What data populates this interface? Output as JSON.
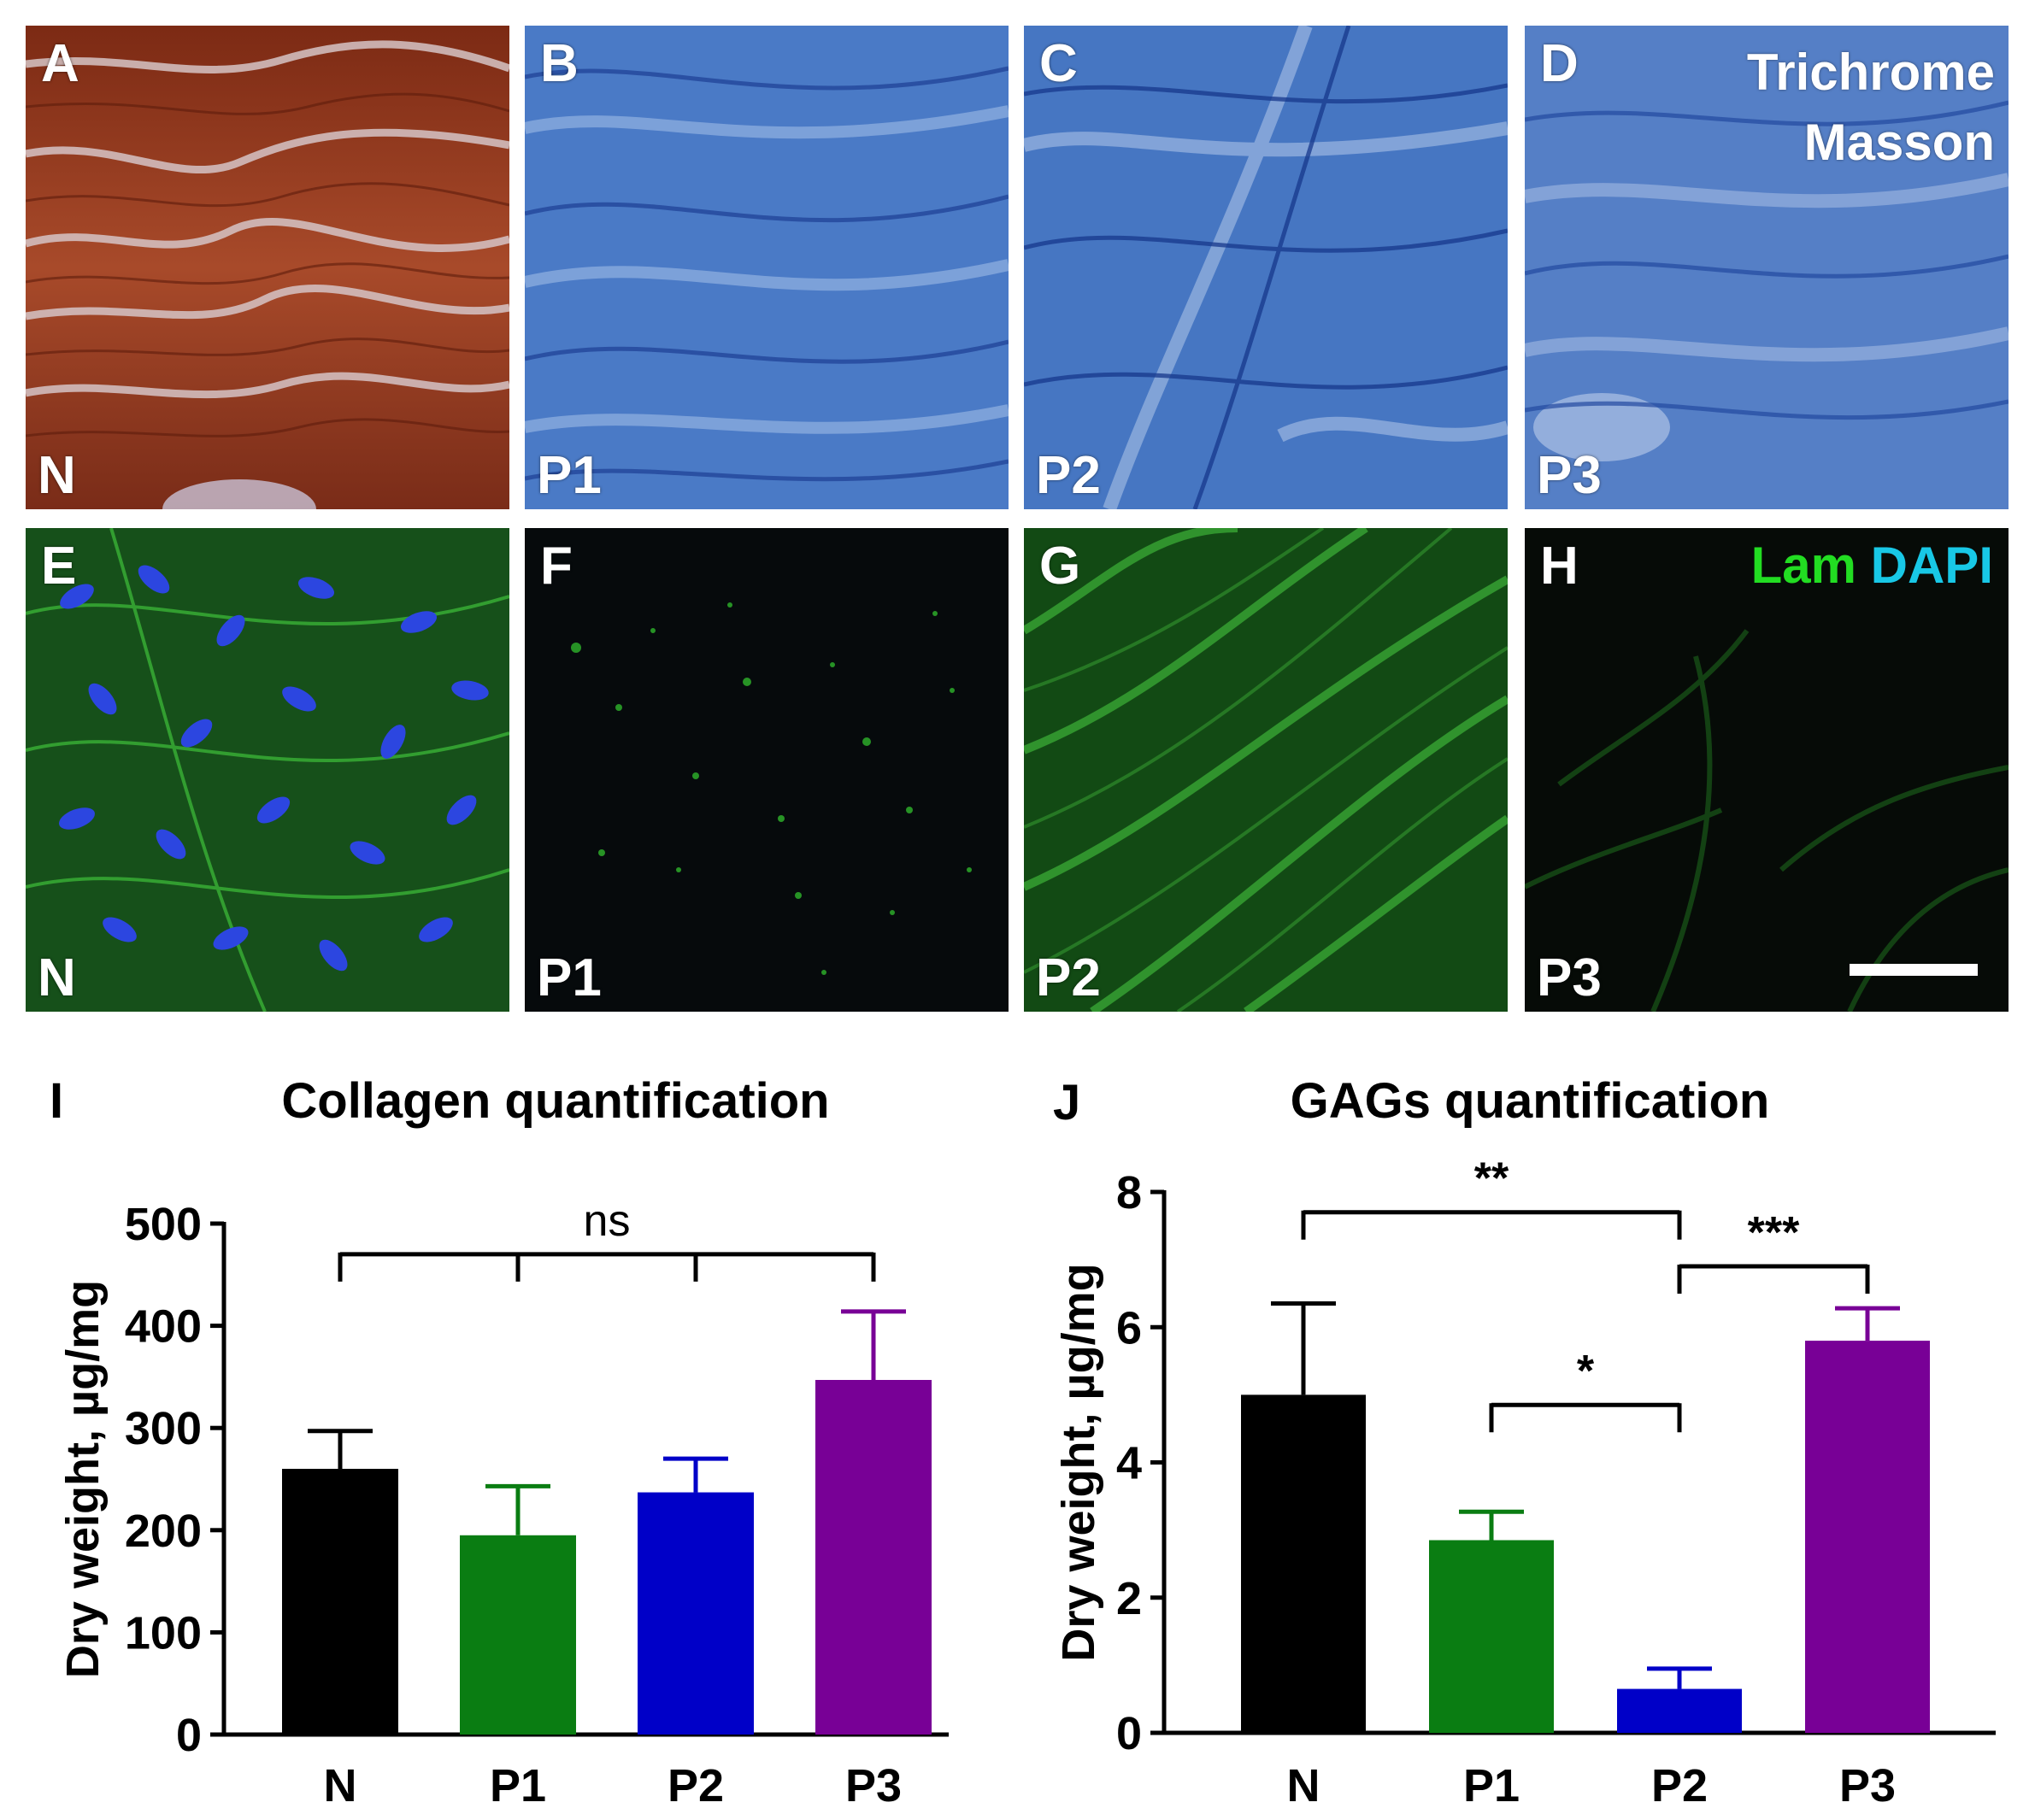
{
  "panels": [
    {
      "letter": "A",
      "group": "N"
    },
    {
      "letter": "B",
      "group": "P1"
    },
    {
      "letter": "C",
      "group": "P2"
    },
    {
      "letter": "D",
      "group": "P3"
    },
    {
      "letter": "E",
      "group": "N"
    },
    {
      "letter": "F",
      "group": "P1"
    },
    {
      "letter": "G",
      "group": "P2"
    },
    {
      "letter": "H",
      "group": "P3"
    }
  ],
  "stain_top": {
    "line1": "Trichrome",
    "line2": "Masson"
  },
  "stain_bottom": {
    "lam": "Lam",
    "dapi": "DAPI",
    "lam_color": "#22dd22",
    "dapi_color": "#18c8e6"
  },
  "colors": {
    "N": "#000000",
    "P1": "#0a7d12",
    "P2": "#0000c8",
    "P3": "#780096"
  },
  "chart_data": [
    {
      "panel_letter": "I",
      "type": "bar",
      "title": "Collagen quantification",
      "ylabel": "Dry weight, µg/mg",
      "xlabel": "",
      "categories": [
        "N",
        "P1",
        "P2",
        "P3"
      ],
      "values": [
        260,
        195,
        237,
        347
      ],
      "errors": [
        37,
        48,
        33,
        67
      ],
      "ylim": [
        0,
        500
      ],
      "yticks": [
        0,
        100,
        200,
        300,
        400,
        500
      ],
      "significance": [
        {
          "label": "ns",
          "from": 0,
          "to": 3,
          "level": 470,
          "drops": [
            0,
            1,
            2,
            3
          ]
        }
      ]
    },
    {
      "panel_letter": "J",
      "type": "bar",
      "title": "GAGs quantification",
      "ylabel": "Dry weight, µg/mg",
      "xlabel": "",
      "categories": [
        "N",
        "P1",
        "P2",
        "P3"
      ],
      "values": [
        5.0,
        2.85,
        0.65,
        5.8
      ],
      "errors": [
        1.35,
        0.42,
        0.3,
        0.48
      ],
      "ylim": [
        0,
        8
      ],
      "yticks": [
        0,
        2,
        4,
        6,
        8
      ],
      "significance": [
        {
          "label": "**",
          "from": 0,
          "to": 2,
          "level": 7.7,
          "drops": [
            0,
            2
          ]
        },
        {
          "label": "***",
          "from": 2,
          "to": 3,
          "level": 6.9,
          "drops": [
            2,
            3
          ]
        },
        {
          "label": "*",
          "from": 1,
          "to": 2,
          "level": 4.85,
          "drops": [
            1,
            2
          ]
        }
      ]
    }
  ]
}
